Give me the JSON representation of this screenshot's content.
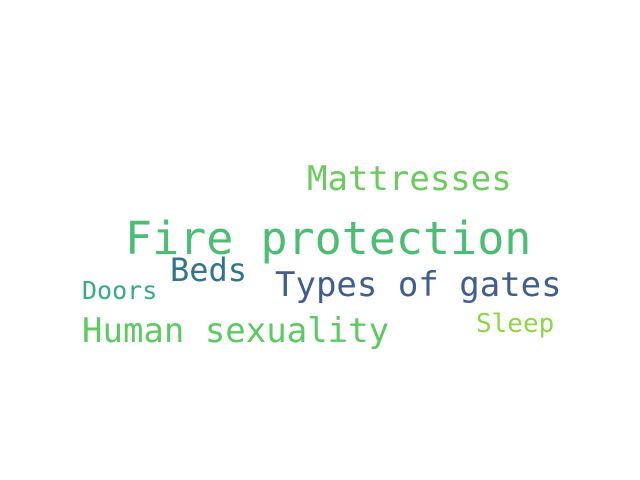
{
  "words": {
    "fire_protection": {
      "text": "Fire protection",
      "color": "#4cbd73"
    },
    "mattresses": {
      "text": "Mattresses",
      "color": "#6ccb5f"
    },
    "beds": {
      "text": "Beds",
      "color": "#33738d"
    },
    "types_of_gates": {
      "text": "Types of gates",
      "color": "#3f5e8f"
    },
    "doors": {
      "text": "Doors",
      "color": "#35ac82"
    },
    "human_sexuality": {
      "text": "Human sexuality",
      "color": "#5ec962"
    },
    "sleep": {
      "text": "Sleep",
      "color": "#8fd449"
    }
  }
}
